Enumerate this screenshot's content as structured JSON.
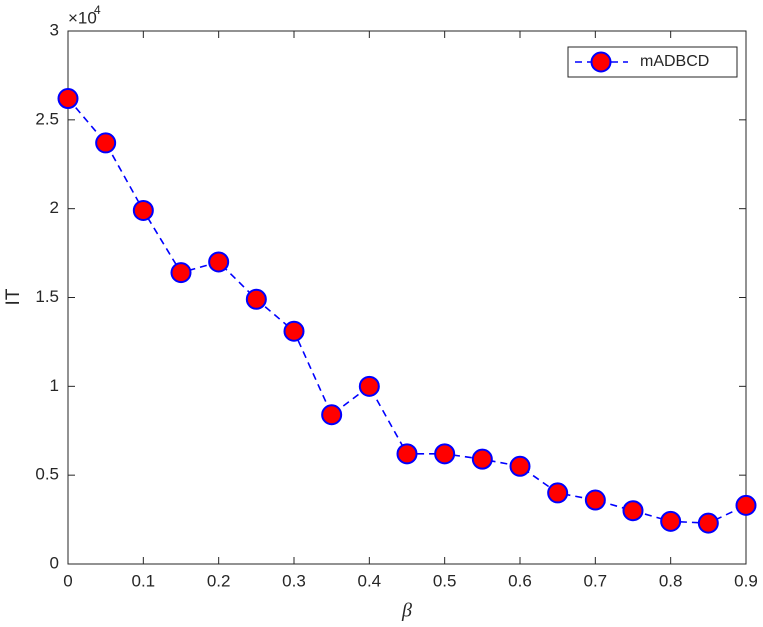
{
  "chart_data": {
    "type": "line",
    "x_label": "β",
    "y_label": "IT",
    "y_multiplier_base": "×10",
    "y_multiplier_exponent": "4",
    "x": [
      0,
      0.05,
      0.1,
      0.15,
      0.2,
      0.25,
      0.3,
      0.35,
      0.4,
      0.45,
      0.5,
      0.55,
      0.6,
      0.65,
      0.7,
      0.75,
      0.8,
      0.85,
      0.9
    ],
    "series": [
      {
        "name": "mADBCD",
        "color": "#0000ff",
        "marker_color": "#ff0000",
        "line_style": "dashed",
        "values": [
          2.62,
          2.37,
          1.99,
          1.64,
          1.7,
          1.49,
          1.31,
          0.84,
          1.0,
          0.62,
          0.62,
          0.59,
          0.55,
          0.4,
          0.36,
          0.3,
          0.24,
          0.23,
          0.33
        ]
      }
    ],
    "xlim": [
      0,
      0.9
    ],
    "xticks": [
      0,
      0.1,
      0.2,
      0.3,
      0.4,
      0.5,
      0.6,
      0.7,
      0.8,
      0.9
    ],
    "ylim": [
      0,
      3
    ],
    "yticks": [
      0,
      0.5,
      1,
      1.5,
      2,
      2.5,
      3
    ],
    "grid": false,
    "legend_position": "northeast"
  }
}
